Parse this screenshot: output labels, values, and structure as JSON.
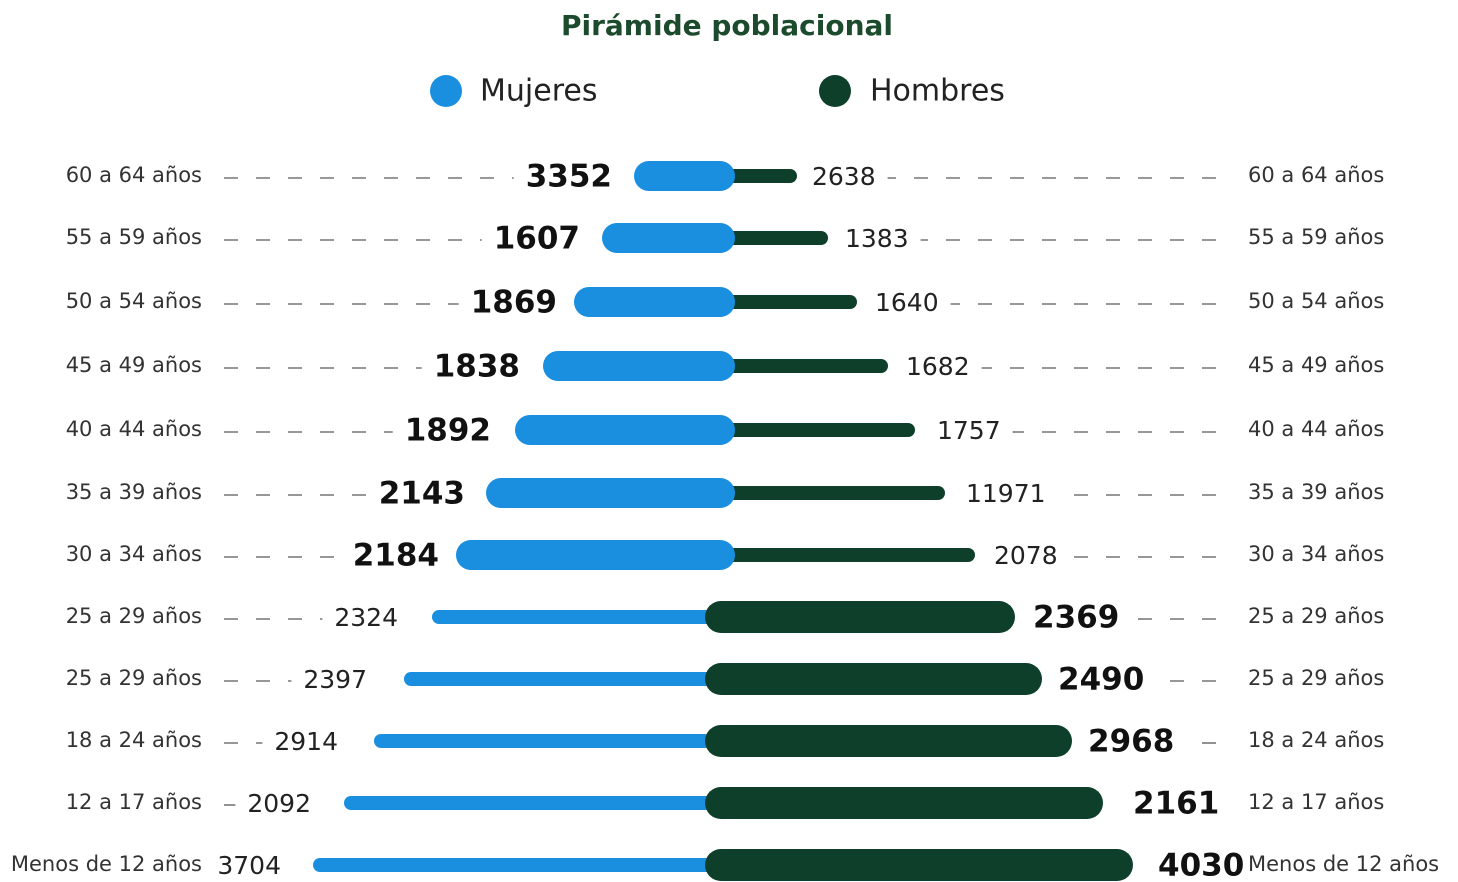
{
  "title": "Pirámide poblacional",
  "legend": {
    "women": "Mujeres",
    "men": "Hombres"
  },
  "rows": [
    {
      "left_label": "60 a 64 años",
      "women": 3352,
      "men": 2638,
      "right_label": "60 a 64 años"
    },
    {
      "left_label": "55 a 59 años",
      "women": 1607,
      "men": 1383,
      "right_label": "55 a 59 años"
    },
    {
      "left_label": "50 a 54 años",
      "women": 1869,
      "men": 1640,
      "right_label": "50 a 54 años"
    },
    {
      "left_label": "45 a 49 años",
      "women": 1838,
      "men": 1682,
      "right_label": "45 a 49 años"
    },
    {
      "left_label": "40 a 44 años",
      "women": 1892,
      "men": 1757,
      "right_label": "40 a 44 años"
    },
    {
      "left_label": "35 a 39 años",
      "women": 2143,
      "men": 11971,
      "right_label": "35 a 39 años"
    },
    {
      "left_label": "30 a 34 años",
      "women": 2184,
      "men": 2078,
      "right_label": "30 a 34 años"
    },
    {
      "left_label": "25 a 29 años",
      "women": 2324,
      "men": 2369,
      "right_label": "25 a 29 años"
    },
    {
      "left_label": "25 a 29 años",
      "women": 2397,
      "men": 2490,
      "right_label": "25 a 29 años"
    },
    {
      "left_label": "18 a 24 años",
      "women": 2914,
      "men": 2968,
      "right_label": "18 a 24 años"
    },
    {
      "left_label": "12 a 17 años",
      "women": 2092,
      "men": 2161,
      "right_label": "12 a 17 años"
    },
    {
      "left_label": "Menos de 12 años",
      "women": 3704,
      "men": 4030,
      "right_label": "Menos de 12 años"
    }
  ]
}
